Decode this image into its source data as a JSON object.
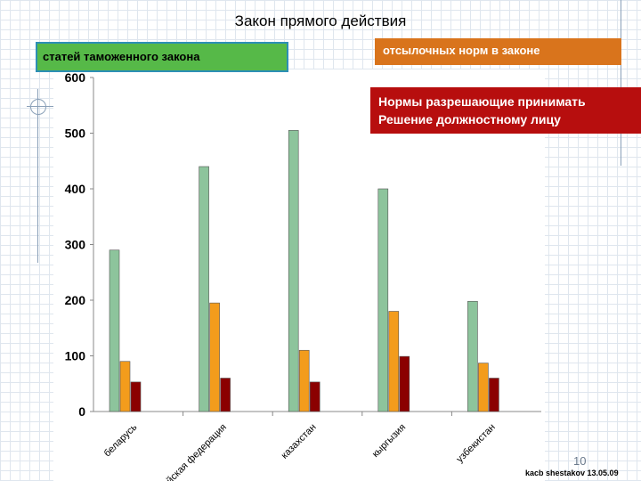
{
  "title": "Закон прямого действия",
  "legend": {
    "green": "статей таможенного закона",
    "orange": "отсылочных норм в законе",
    "red_line1": "Нормы разрешающие принимать",
    "red_line2": "Решение должностному лицу"
  },
  "page_number": "10",
  "footer": "kacb shestakov 13.05.09",
  "colors": {
    "green_bar": "#8dc49c",
    "orange_bar": "#f39c1c",
    "red_bar": "#8b0000",
    "green_legend": "#56b948",
    "orange_legend": "#d9741c",
    "red_legend": "#b70e0e"
  },
  "chart_data": {
    "type": "bar",
    "categories": [
      "беларусь",
      "российская федерация",
      "казахстан",
      "кыргызия",
      "узбекистан"
    ],
    "series": [
      {
        "name": "статей таможенного закона",
        "values": [
          290,
          440,
          505,
          400,
          198
        ]
      },
      {
        "name": "отсылочных норм в законе",
        "values": [
          90,
          195,
          110,
          180,
          87
        ]
      },
      {
        "name": "Нормы разрешающие принимать Решение должностному лицу",
        "values": [
          53,
          60,
          53,
          99,
          60
        ]
      }
    ],
    "ylim": [
      0,
      600
    ],
    "yticks": [
      0,
      100,
      200,
      300,
      400,
      500,
      600
    ],
    "grid": false,
    "legend_position": "top"
  }
}
